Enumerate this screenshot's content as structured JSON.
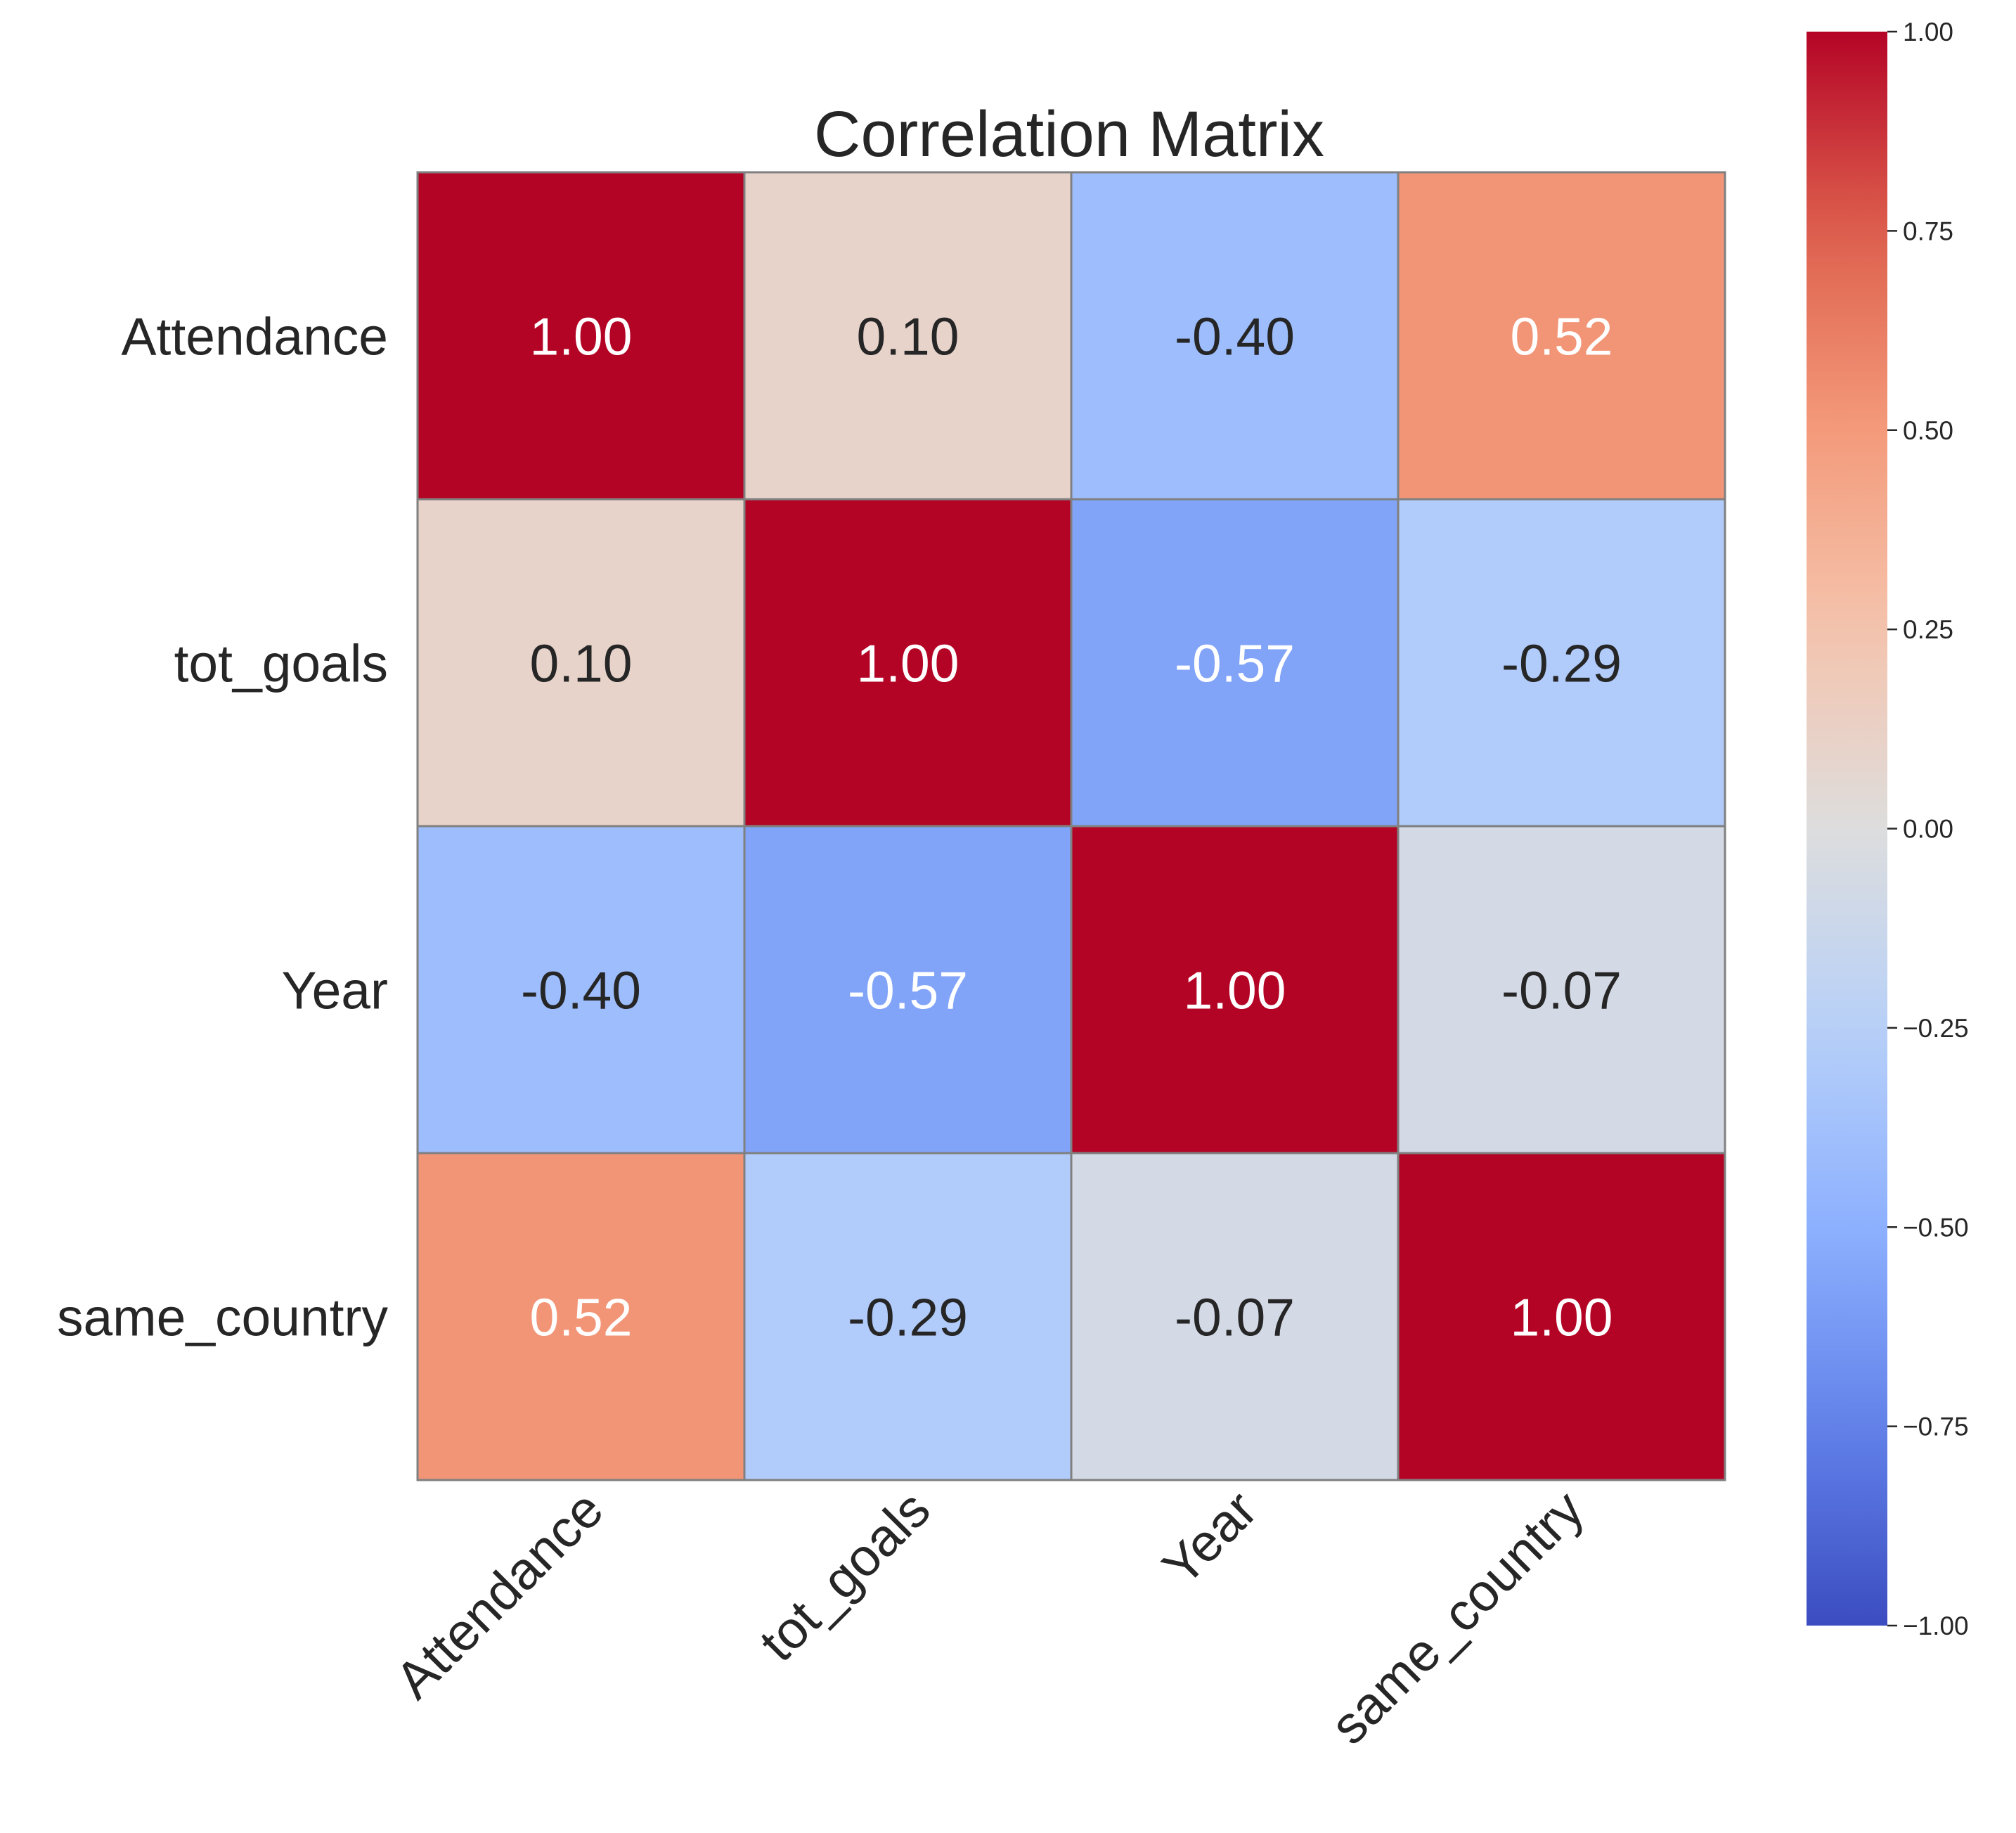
{
  "chart_data": {
    "type": "heatmap",
    "title": "Correlation Matrix",
    "xlabel": "",
    "ylabel": "",
    "row_labels": [
      "Attendance",
      "tot_goals",
      "Year",
      "same_country"
    ],
    "col_labels": [
      "Attendance",
      "tot_goals",
      "Year",
      "same_country"
    ],
    "values": [
      [
        1.0,
        0.1,
        -0.4,
        0.52
      ],
      [
        0.1,
        1.0,
        -0.57,
        -0.29
      ],
      [
        -0.4,
        -0.57,
        1.0,
        -0.07
      ],
      [
        0.52,
        -0.29,
        -0.07,
        1.0
      ]
    ],
    "annotations": [
      [
        "1.00",
        "0.10",
        "-0.40",
        "0.52"
      ],
      [
        "0.10",
        "1.00",
        "-0.57",
        "-0.29"
      ],
      [
        "-0.40",
        "-0.57",
        "1.00",
        "-0.07"
      ],
      [
        "0.52",
        "-0.29",
        "-0.07",
        "1.00"
      ]
    ],
    "colormap": "coolwarm",
    "vmin": -1.0,
    "vmax": 1.0,
    "colorbar_ticks": [
      1.0,
      0.75,
      0.5,
      0.25,
      0.0,
      -0.25,
      -0.5,
      -0.75,
      -1.0
    ],
    "colorbar_tick_labels": [
      "1.00",
      "0.75",
      "0.50",
      "0.25",
      "0.00",
      "−0.25",
      "−0.50",
      "−0.75",
      "−1.00"
    ],
    "colors": {
      "cell_border": "#808080",
      "text_dark": "#262626",
      "text_light": "#ffffff"
    }
  }
}
